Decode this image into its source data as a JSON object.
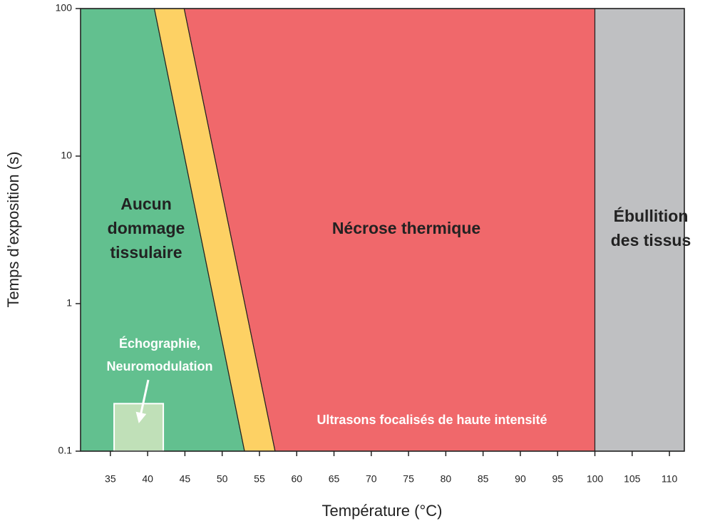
{
  "chart_data": {
    "type": "region",
    "x_label": "Température (°C)",
    "y_label": "Temps d’exposition (s)",
    "xlim": [
      31,
      112
    ],
    "ylim": [
      0.1,
      100
    ],
    "ylog": true,
    "xticks": [
      35,
      40,
      45,
      50,
      55,
      60,
      65,
      70,
      75,
      80,
      85,
      90,
      95,
      100,
      105,
      110
    ],
    "yticks": [
      0.1,
      1,
      10,
      100
    ],
    "regions": [
      {
        "label": [
          "Aucun",
          "dommage",
          "tissulaire"
        ],
        "color": "#62c08f",
        "x": [
          31,
          40.9,
          53.0,
          31
        ],
        "y": [
          100,
          100,
          0.1,
          0.1
        ]
      },
      {
        "color": "#fdd164",
        "x": [
          40.9,
          44.9,
          57.1,
          53.0
        ],
        "y": [
          100,
          100,
          0.1,
          0.1
        ]
      },
      {
        "label": [
          "Nécrose thermique"
        ],
        "color": "#f0686b",
        "x": [
          44.9,
          100,
          100,
          57.1
        ],
        "y": [
          100,
          100,
          0.1,
          0.1
        ]
      },
      {
        "label": [
          "Ébullition",
          "des tissus"
        ],
        "color": "#bfc0c2",
        "x": [
          100,
          112,
          112,
          100
        ],
        "y": [
          100,
          100,
          0.1,
          0.1
        ]
      }
    ],
    "box": {
      "label": [
        "Échographie,",
        "Neuromodulation"
      ],
      "color": "#c0e0b8",
      "x": [
        35.5,
        42.1
      ],
      "y": [
        0.1,
        0.21
      ]
    },
    "annotation": "Ultrasons focalisés de haute intensité"
  }
}
